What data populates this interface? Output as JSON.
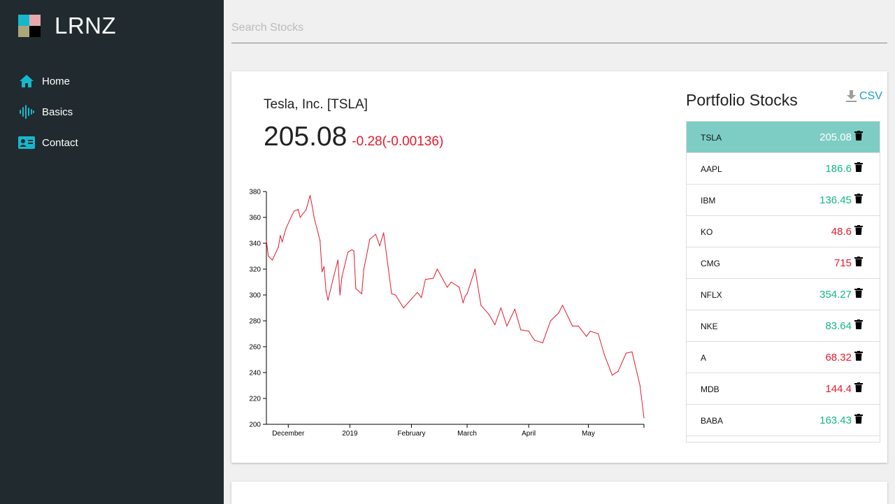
{
  "app": {
    "title": "LRNZ",
    "logo_colors": [
      "#16b7cd",
      "#e4a9ad",
      "#aaa77a",
      "#000000"
    ]
  },
  "nav": [
    {
      "label": "Home",
      "icon": "home-icon"
    },
    {
      "label": "Basics",
      "icon": "waveform-icon"
    },
    {
      "label": "Contact",
      "icon": "contact-card-icon"
    }
  ],
  "search": {
    "placeholder": "Search Stocks",
    "value": ""
  },
  "stock": {
    "name": "Tesla, Inc. [TSLA]",
    "price": "205.08",
    "change": "-0.28(-0.00136)"
  },
  "colors": {
    "accent": "#16b7cd",
    "up": "#12b886",
    "down": "#e8192c",
    "selected": "#7ecdc4",
    "sidebar": "#212a2e"
  },
  "portfolio": {
    "title": "Portfolio Stocks",
    "csv_label": "CSV",
    "stocks": [
      {
        "symbol": "TSLA",
        "price": "205.08",
        "trend": "selected"
      },
      {
        "symbol": "AAPL",
        "price": "186.6",
        "trend": "up"
      },
      {
        "symbol": "IBM",
        "price": "136.45",
        "trend": "up"
      },
      {
        "symbol": "KO",
        "price": "48.6",
        "trend": "down"
      },
      {
        "symbol": "CMG",
        "price": "715",
        "trend": "down"
      },
      {
        "symbol": "NFLX",
        "price": "354.27",
        "trend": "up"
      },
      {
        "symbol": "NKE",
        "price": "83.64",
        "trend": "up"
      },
      {
        "symbol": "A",
        "price": "68.32",
        "trend": "down"
      },
      {
        "symbol": "MDB",
        "price": "144.4",
        "trend": "down"
      },
      {
        "symbol": "BABA",
        "price": "163.43",
        "trend": "up"
      }
    ]
  },
  "chart_data": {
    "type": "line",
    "series_color": "#e8192c",
    "x_ticks": [
      "December",
      "2019",
      "February",
      "March",
      "April",
      "May"
    ],
    "x_tick_dates": [
      "2018-12-01",
      "2019-01-01",
      "2019-02-01",
      "2019-03-01",
      "2019-04-01",
      "2019-05-01"
    ],
    "x_range": [
      "2018-11-20",
      "2019-05-29"
    ],
    "y_ticks": [
      200,
      220,
      240,
      260,
      280,
      300,
      320,
      340,
      360,
      380
    ],
    "ylim": [
      200,
      380
    ],
    "grid": false,
    "x": [
      "2018-11-20",
      "2018-11-21",
      "2018-11-23",
      "2018-11-26",
      "2018-11-27",
      "2018-11-28",
      "2018-11-29",
      "2018-11-30",
      "2018-12-03",
      "2018-12-04",
      "2018-12-06",
      "2018-12-07",
      "2018-12-10",
      "2018-12-12",
      "2018-12-13",
      "2018-12-14",
      "2018-12-17",
      "2018-12-18",
      "2018-12-19",
      "2018-12-20",
      "2018-12-21",
      "2018-12-24",
      "2018-12-26",
      "2018-12-27",
      "2018-12-28",
      "2018-12-31",
      "2019-01-02",
      "2019-01-03",
      "2019-01-04",
      "2019-01-07",
      "2019-01-08",
      "2019-01-10",
      "2019-01-11",
      "2019-01-14",
      "2019-01-16",
      "2019-01-18",
      "2019-01-22",
      "2019-01-24",
      "2019-01-28",
      "2019-02-01",
      "2019-02-04",
      "2019-02-06",
      "2019-02-08",
      "2019-02-12",
      "2019-02-14",
      "2019-02-19",
      "2019-02-21",
      "2019-02-25",
      "2019-02-27",
      "2019-02-28",
      "2019-03-01",
      "2019-03-05",
      "2019-03-08",
      "2019-03-12",
      "2019-03-15",
      "2019-03-18",
      "2019-03-21",
      "2019-03-25",
      "2019-03-28",
      "2019-04-01",
      "2019-04-03",
      "2019-04-04",
      "2019-04-08",
      "2019-04-12",
      "2019-04-16",
      "2019-04-18",
      "2019-04-23",
      "2019-04-26",
      "2019-04-30",
      "2019-05-02",
      "2019-05-06",
      "2019-05-09",
      "2019-05-13",
      "2019-05-16",
      "2019-05-20",
      "2019-05-23",
      "2019-05-27",
      "2019-05-29"
    ],
    "y": [
      342,
      330,
      327,
      337,
      346,
      341,
      347,
      352,
      362,
      365,
      366,
      360,
      366,
      377,
      369,
      360,
      342,
      318,
      322,
      303,
      296,
      315,
      327,
      300,
      314,
      333,
      335,
      334,
      305,
      301,
      320,
      335,
      343,
      347,
      338,
      348,
      301,
      300,
      290,
      297,
      302,
      298,
      312,
      313,
      320,
      306,
      310,
      306,
      294,
      299,
      301,
      320,
      292,
      285,
      277,
      290,
      276,
      289,
      273,
      272,
      267,
      265,
      263,
      280,
      286,
      292,
      276,
      276,
      268,
      272,
      270,
      254,
      238,
      241,
      255,
      256,
      230,
      205
    ]
  }
}
